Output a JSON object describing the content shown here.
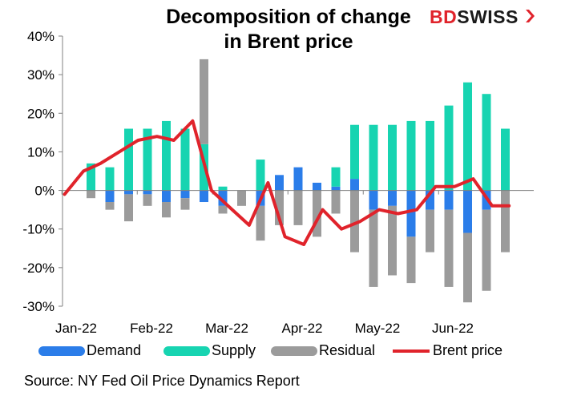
{
  "title_line1": "Decomposition of change",
  "title_line2": "in Brent price",
  "logo": {
    "bd": "BD",
    "swiss": "SWISS"
  },
  "source": "Source:  NY Fed Oil Price Dynamics Report",
  "colors": {
    "demand": "#2b7de9",
    "supply": "#17d4b1",
    "residual": "#9b9b9b",
    "brent": "#e0232b"
  },
  "chart_data": {
    "type": "bar",
    "stacked": true,
    "ylim": [
      -30,
      40
    ],
    "yticks": [
      "40%",
      "30%",
      "20%",
      "10%",
      "0%",
      "-10%",
      "-20%",
      "-30%"
    ],
    "ytick_values": [
      40,
      30,
      20,
      10,
      0,
      -10,
      -20,
      -30
    ],
    "x_labels": [
      "Jan-22",
      "Feb-22",
      "Mar-22",
      "Apr-22",
      "May-22",
      "Jun-22"
    ],
    "x_label_index": [
      0,
      4,
      8,
      12,
      16,
      20
    ],
    "legend_position": "bottom",
    "grid": false,
    "series": [
      {
        "name": "Demand",
        "values": [
          0,
          0,
          -3,
          -1,
          -1,
          -3,
          -2,
          -3,
          -4,
          0,
          -4,
          4,
          6,
          2,
          1,
          3,
          -5,
          -4,
          -12,
          -5,
          -5,
          -11,
          -5,
          0
        ]
      },
      {
        "name": "Supply",
        "values": [
          0,
          7,
          6,
          16,
          16,
          18,
          16,
          12,
          1,
          0,
          8,
          0,
          0,
          0,
          5,
          14,
          17,
          17,
          18,
          18,
          22,
          28,
          25,
          16
        ]
      },
      {
        "name": "Residual",
        "values": [
          0,
          -2,
          -2,
          -7,
          -3,
          -4,
          -3,
          22,
          -2,
          -4,
          -9,
          -9,
          -9,
          -12,
          -6,
          -16,
          -20,
          -18,
          -12,
          -11,
          -20,
          -18,
          -21,
          -16
        ]
      },
      {
        "name": "Brent price",
        "type": "line",
        "values": [
          -1,
          5,
          7,
          10,
          13,
          14,
          13,
          18,
          0,
          -5,
          -9,
          2,
          -12,
          -14,
          -5,
          -10,
          -8,
          -5,
          -6,
          -5,
          1,
          1,
          3,
          -4,
          -4
        ]
      }
    ],
    "bar_x_index": [
      0,
      1,
      2,
      3,
      4,
      5,
      6,
      7,
      8,
      9,
      10,
      11,
      12,
      13,
      14,
      15,
      16,
      17,
      18,
      19,
      20,
      21,
      22,
      23
    ],
    "line_x_index": [
      -0.4,
      0.6,
      1.5,
      2.5,
      3.5,
      4.5,
      5.4,
      6.4,
      7.4,
      8.5,
      9.4,
      10.4,
      11.3,
      12.3,
      13.3,
      14.3,
      15.3,
      16.3,
      17.3,
      18.3,
      19.3,
      20.3,
      21.3,
      22.3,
      23.2
    ]
  },
  "legend": [
    {
      "name": "Demand"
    },
    {
      "name": "Supply"
    },
    {
      "name": "Residual"
    },
    {
      "name": "Brent price"
    }
  ]
}
